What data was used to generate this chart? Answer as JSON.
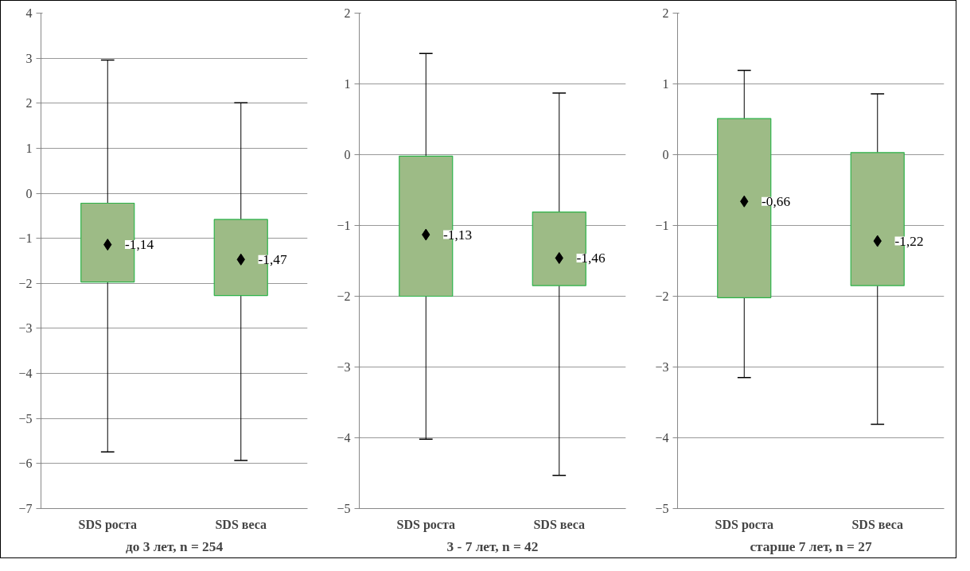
{
  "chart_data": [
    {
      "type": "box",
      "title": "до 3 лет, n = 254",
      "categories": [
        "SDS роста",
        "SDS веса"
      ],
      "color": "#9dbb86",
      "marker": "diamond",
      "grid": "y",
      "ylim": [
        -7,
        4
      ],
      "yticks": [
        -7,
        -6,
        -5,
        -4,
        -3,
        -2,
        -1,
        0,
        1,
        2,
        3,
        4
      ],
      "boxes": [
        {
          "low": -5.74,
          "q1": -1.97,
          "q3": -0.22,
          "high": 2.96,
          "mean": -1.14
        },
        {
          "low": -5.93,
          "q1": -2.27,
          "q3": -0.58,
          "high": 2.01,
          "mean": -1.47
        }
      ],
      "annotations": [
        "-1,14",
        "-1,47"
      ]
    },
    {
      "type": "box",
      "title": "3 - 7 лет, n = 42",
      "categories": [
        "SDS роста",
        "SDS веса"
      ],
      "color": "#9dbb86",
      "marker": "diamond",
      "grid": "y",
      "ylim": [
        -5,
        2
      ],
      "yticks": [
        -5,
        -4,
        -3,
        -2,
        -1,
        0,
        1,
        2
      ],
      "boxes": [
        {
          "low": -4.02,
          "q1": -2.0,
          "q3": -0.02,
          "high": 1.43,
          "mean": -1.13
        },
        {
          "low": -4.53,
          "q1": -1.85,
          "q3": -0.81,
          "high": 0.87,
          "mean": -1.46
        }
      ],
      "annotations": [
        "-1,13",
        "-1,46"
      ]
    },
    {
      "type": "box",
      "title": "старше 7 лет, n = 27",
      "categories": [
        "SDS роста",
        "SDS веса"
      ],
      "color": "#9dbb86",
      "marker": "diamond",
      "grid": "y",
      "ylim": [
        -5,
        2
      ],
      "yticks": [
        -5,
        -4,
        -3,
        -2,
        -1,
        0,
        1,
        2
      ],
      "boxes": [
        {
          "low": -3.15,
          "q1": -2.02,
          "q3": 0.51,
          "high": 1.19,
          "mean": -0.66
        },
        {
          "low": -3.81,
          "q1": -1.85,
          "q3": 0.03,
          "high": 0.86,
          "mean": -1.22
        }
      ],
      "annotations": [
        "-0,66",
        "-1,22"
      ]
    }
  ]
}
